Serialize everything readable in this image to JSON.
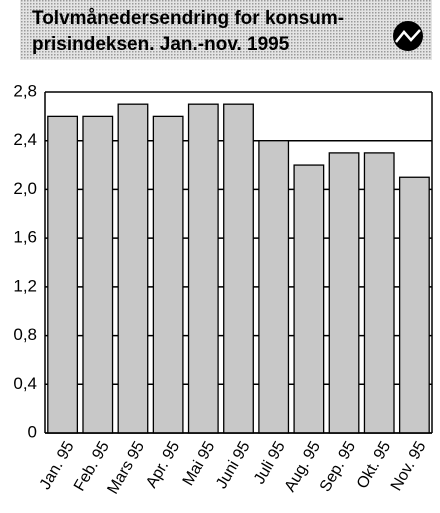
{
  "chart_data": {
    "type": "bar",
    "title": [
      "Tolvmånedersendring for konsum-",
      "prisindeksen. Jan.-nov. 1995"
    ],
    "categories": [
      "Jan. 95",
      "Feb. 95",
      "Mars 95",
      "Apr. 95",
      "Mai 95",
      "Juni 95",
      "Juli 95",
      "Aug. 95",
      "Sep. 95",
      "Okt. 95",
      "Nov. 95"
    ],
    "values": [
      2.6,
      2.6,
      2.7,
      2.6,
      2.7,
      2.7,
      2.4,
      2.2,
      2.3,
      2.3,
      2.1
    ],
    "color": "#c8c8c8",
    "ylim": [
      0,
      2.8
    ],
    "yticks": [
      0,
      {
        "value": 0.4,
        "label": "0,4"
      },
      {
        "value": 0.8,
        "label": "0,8"
      },
      {
        "value": 1.2,
        "label": "1,2"
      },
      {
        "value": 1.6,
        "label": "1,6"
      },
      {
        "value": 2.0,
        "label": "2,0"
      },
      {
        "value": 2.4,
        "label": "2,4"
      },
      {
        "value": 2.8,
        "label": "2,8"
      }
    ],
    "grid": true
  }
}
